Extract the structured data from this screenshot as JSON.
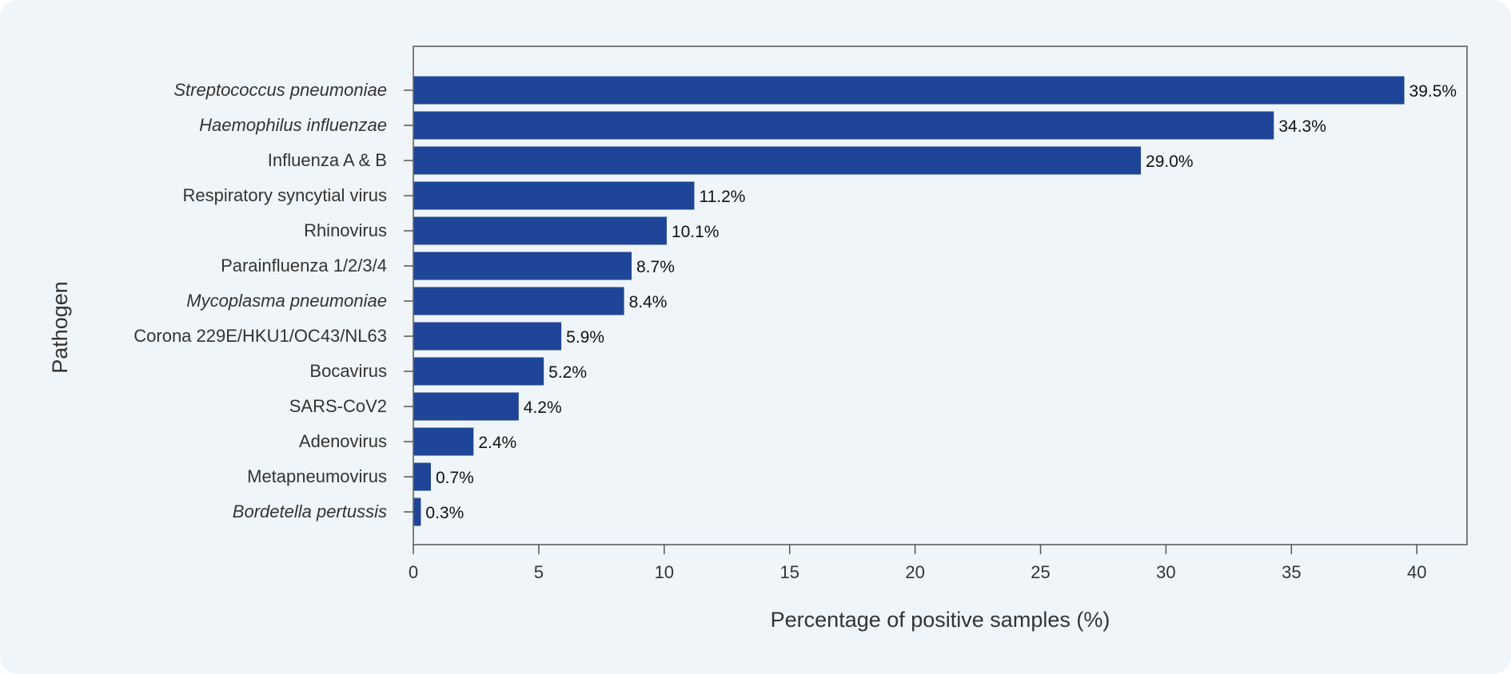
{
  "chart_data": {
    "type": "bar",
    "orientation": "horizontal",
    "title": "",
    "xlabel": "Percentage of positive samples (%)",
    "ylabel": "Pathogen",
    "xlim": [
      0,
      42
    ],
    "xticks": [
      0,
      5,
      10,
      15,
      20,
      25,
      30,
      35,
      40
    ],
    "categories": [
      "Streptococcus pneumoniae",
      "Haemophilus influenzae",
      "Influenza A & B",
      "Respiratory syncytial virus",
      "Rhinovirus",
      "Parainfluenza 1/2/3/4",
      "Mycoplasma pneumoniae",
      "Corona 229E/HKU1/OC43/NL63",
      "Bocavirus",
      "SARS-CoV2",
      "Adenovirus",
      "Metapneumovirus",
      "Bordetella pertussis"
    ],
    "italic": [
      true,
      true,
      false,
      false,
      false,
      false,
      true,
      false,
      false,
      false,
      false,
      false,
      true
    ],
    "values": [
      39.5,
      34.3,
      29.0,
      11.2,
      10.1,
      8.7,
      8.4,
      5.9,
      5.2,
      4.2,
      2.4,
      0.7,
      0.3
    ],
    "value_labels": [
      "39.5%",
      "34.3%",
      "29.0%",
      "11.2%",
      "10.1%",
      "8.7%",
      "8.4%",
      "5.9%",
      "5.2%",
      "4.2%",
      "2.4%",
      "0.7%",
      "0.3%"
    ],
    "grid": false,
    "legend": "none"
  },
  "colors": {
    "bar": "#1e4597",
    "background": "#f0f5fa",
    "axis": "#555555"
  }
}
